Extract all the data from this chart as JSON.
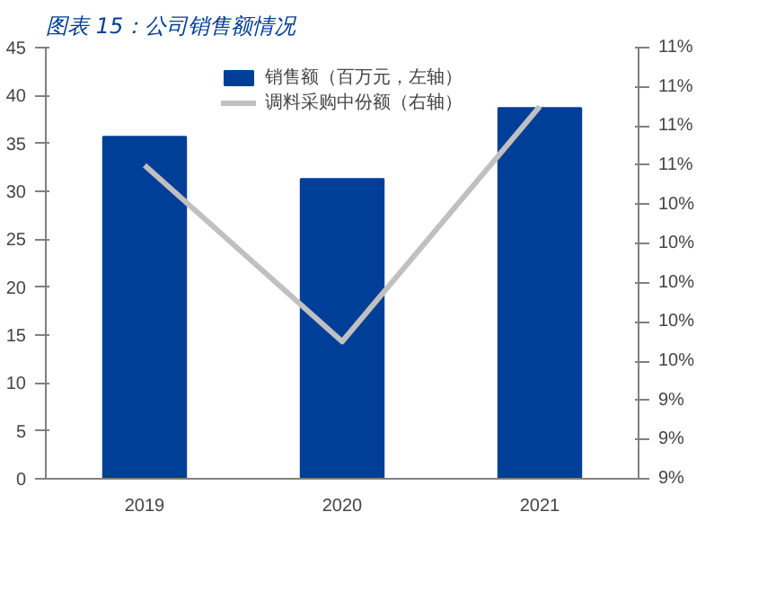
{
  "chart_data": {
    "type": "bar",
    "title": "图表 15：公司销售额情况",
    "categories": [
      "2019",
      "2020",
      "2021"
    ],
    "series": [
      {
        "name": "销售额（百万元，左轴）",
        "color": "#003f98",
        "values": [
          35.7,
          31.3,
          38.7
        ]
      },
      {
        "name": "调料采购中份额（右轴）",
        "type": "line",
        "axis": "y2",
        "color": "#c0c0c0",
        "values": [
          10.6,
          9.7,
          10.9
        ]
      }
    ],
    "ylim": [
      0,
      45
    ],
    "yticks": [
      0,
      5,
      10,
      15,
      20,
      25,
      30,
      35,
      40,
      45
    ],
    "y2lim": [
      9.0,
      11.2
    ],
    "y2ticks": [
      {
        "value": 9.0,
        "label": "9%"
      },
      {
        "value": 9.2,
        "label": "9%"
      },
      {
        "value": 9.4,
        "label": "9%"
      },
      {
        "value": 9.6,
        "label": "10%"
      },
      {
        "value": 9.8,
        "label": "10%"
      },
      {
        "value": 10.0,
        "label": "10%"
      },
      {
        "value": 10.2,
        "label": "10%"
      },
      {
        "value": 10.4,
        "label": "10%"
      },
      {
        "value": 10.6,
        "label": "11%"
      },
      {
        "value": 10.8,
        "label": "11%"
      },
      {
        "value": 11.0,
        "label": "11%"
      },
      {
        "value": 11.2,
        "label": "11%"
      }
    ],
    "legend": "top",
    "grid": false
  }
}
